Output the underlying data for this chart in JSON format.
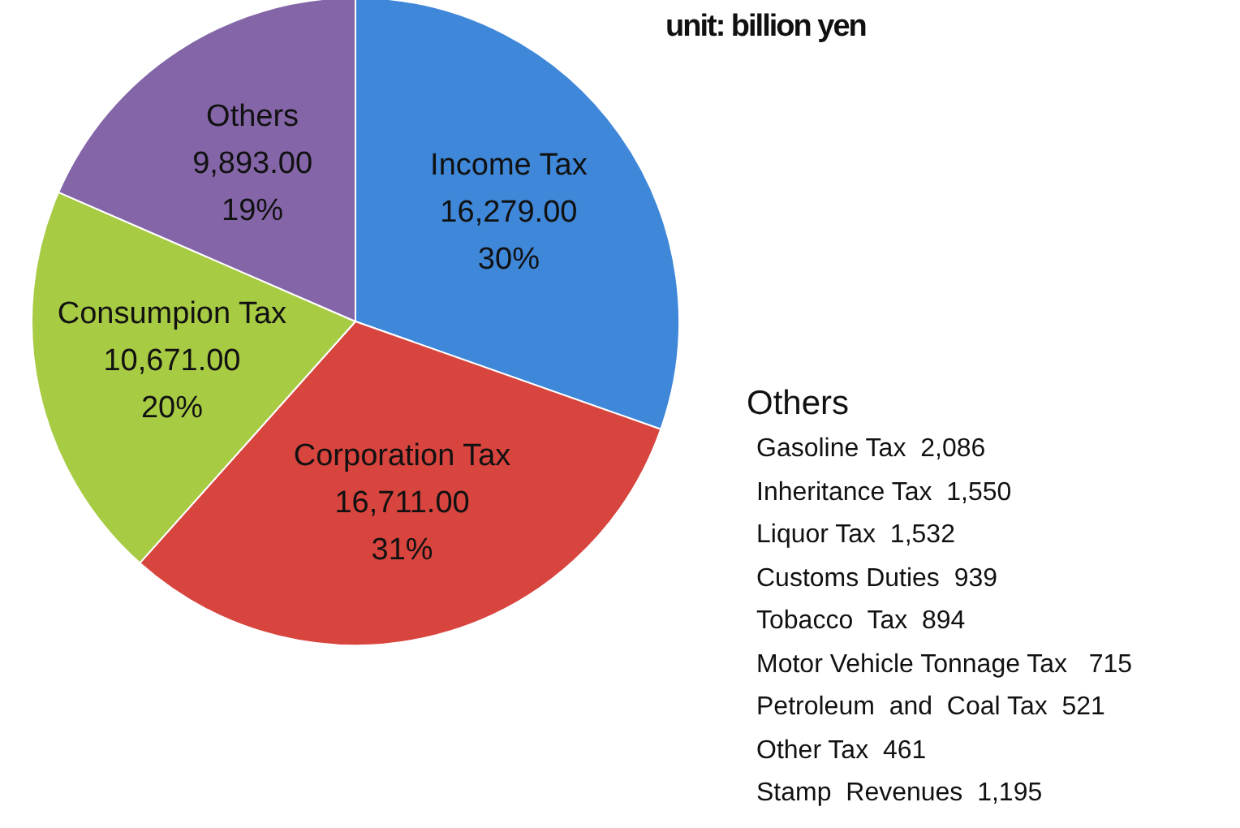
{
  "chart_data": {
    "type": "pie",
    "title": "unit: billion yen",
    "categories": [
      "Income Tax",
      "Corporation Tax",
      "Consumpion Tax",
      "Others"
    ],
    "values": [
      16279,
      16711,
      10671,
      9893
    ],
    "value_labels": [
      "16,279.00\n30%",
      "16,711.00\n31%",
      "10,671.00\n20%",
      "9,893.00\n19%"
    ],
    "colors": [
      "#3f87d8",
      "#d8443e",
      "#a8cb44",
      "#8466a8"
    ],
    "legend": false,
    "annotations": [
      "Others",
      "Gasoline Tax  2,086",
      "Inheritance Tax  1,550",
      "Liquor Tax  1,532",
      "Customs Duties  939",
      "Tobacco  Tax  894",
      "Motor Vehicle Tonnage Tax   715",
      "Petroleum  and  Coal Tax  521",
      "Other Tax  461",
      "Stamp  Revenues  1,195"
    ]
  }
}
